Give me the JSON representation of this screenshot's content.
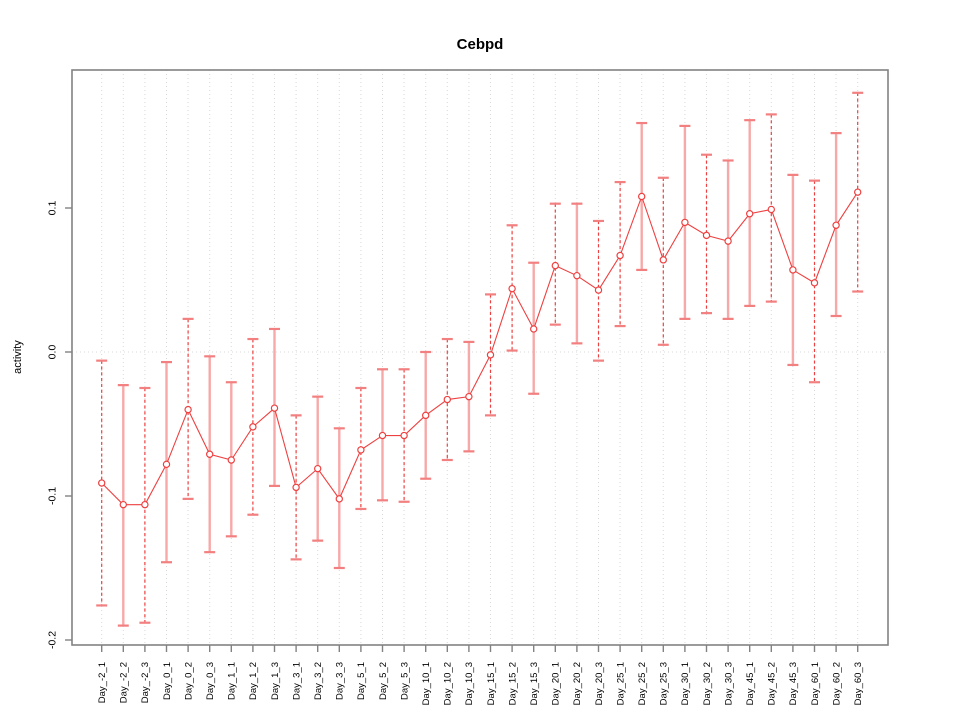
{
  "chart_data": {
    "type": "scatter",
    "title": "Cebpd",
    "xlabel": "",
    "ylabel": "activity",
    "marker": "open-circle",
    "grid": {
      "vertical": "dotted-per-category",
      "horizontal": "dotted-at-zero-only"
    },
    "legend": null,
    "ylim": [
      -0.205,
      0.196
    ],
    "yticks": [
      "0.1",
      "0.0",
      "-0.1",
      "-0.2"
    ],
    "ytick_values": [
      0.1,
      0.0,
      -0.1,
      -0.2
    ],
    "x_tick_rotation": -90,
    "categories": [
      "Day_-2_1",
      "Day_-2_2",
      "Day_-2_3",
      "Day_0_1",
      "Day_0_2",
      "Day_0_3",
      "Day_1_1",
      "Day_1_2",
      "Day_1_3",
      "Day_3_1",
      "Day_3_2",
      "Day_3_3",
      "Day_5_1",
      "Day_5_2",
      "Day_5_3",
      "Day_10_1",
      "Day_10_2",
      "Day_10_3",
      "Day_15_1",
      "Day_15_2",
      "Day_15_3",
      "Day_20_1",
      "Day_20_2",
      "Day_20_3",
      "Day_25_1",
      "Day_25_2",
      "Day_25_3",
      "Day_30_1",
      "Day_30_2",
      "Day_30_3",
      "Day_45_1",
      "Day_45_2",
      "Day_45_3",
      "Day_60_1",
      "Day_60_2",
      "Day_60_3"
    ],
    "series": [
      {
        "name": "activity",
        "values": [
          -0.091,
          -0.106,
          -0.106,
          -0.078,
          -0.04,
          -0.071,
          -0.075,
          -0.052,
          -0.039,
          -0.094,
          -0.081,
          -0.102,
          -0.068,
          -0.058,
          -0.058,
          -0.044,
          -0.033,
          -0.031,
          -0.002,
          0.044,
          0.016,
          0.06,
          0.053,
          0.043,
          0.067,
          0.108,
          0.064,
          0.09,
          0.081,
          0.077,
          0.096,
          0.099,
          0.057,
          0.048,
          0.088,
          0.111
        ],
        "ci_low": [
          -0.176,
          -0.19,
          -0.188,
          -0.146,
          -0.102,
          -0.139,
          -0.128,
          -0.113,
          -0.093,
          -0.144,
          -0.131,
          -0.15,
          -0.109,
          -0.103,
          -0.104,
          -0.088,
          -0.075,
          -0.069,
          -0.044,
          0.001,
          -0.029,
          0.019,
          0.006,
          -0.006,
          0.018,
          0.057,
          0.005,
          0.023,
          0.027,
          0.023,
          0.032,
          0.035,
          -0.009,
          -0.021,
          0.025,
          0.042
        ],
        "ci_high": [
          -0.006,
          -0.023,
          -0.025,
          -0.007,
          0.023,
          -0.003,
          -0.021,
          0.009,
          0.016,
          -0.044,
          -0.031,
          -0.053,
          -0.025,
          -0.012,
          -0.012,
          0.0,
          0.009,
          0.007,
          0.04,
          0.088,
          0.062,
          0.103,
          0.103,
          0.091,
          0.118,
          0.159,
          0.121,
          0.157,
          0.137,
          0.133,
          0.161,
          0.165,
          0.123,
          0.119,
          0.152,
          0.18
        ],
        "bar_styles": [
          "dashed",
          "solid",
          "dashed",
          "solid",
          "dashed",
          "solid",
          "solid",
          "dashed",
          "solid",
          "dashed",
          "solid",
          "solid",
          "dashed",
          "solid",
          "dashed",
          "solid",
          "dashed",
          "solid",
          "dashed",
          "dashed",
          "solid",
          "dashed",
          "solid",
          "dashed",
          "dashed",
          "solid",
          "dashed",
          "solid",
          "dashed",
          "solid",
          "solid",
          "dashed",
          "solid",
          "dashed",
          "solid",
          "dashed"
        ]
      }
    ],
    "colors": {
      "series": "#ee4040",
      "solid_bar": "#f7a8a8",
      "cap": "#f38080",
      "grid": "#d8d8d8",
      "box": "#828282",
      "text": "#000000"
    }
  }
}
